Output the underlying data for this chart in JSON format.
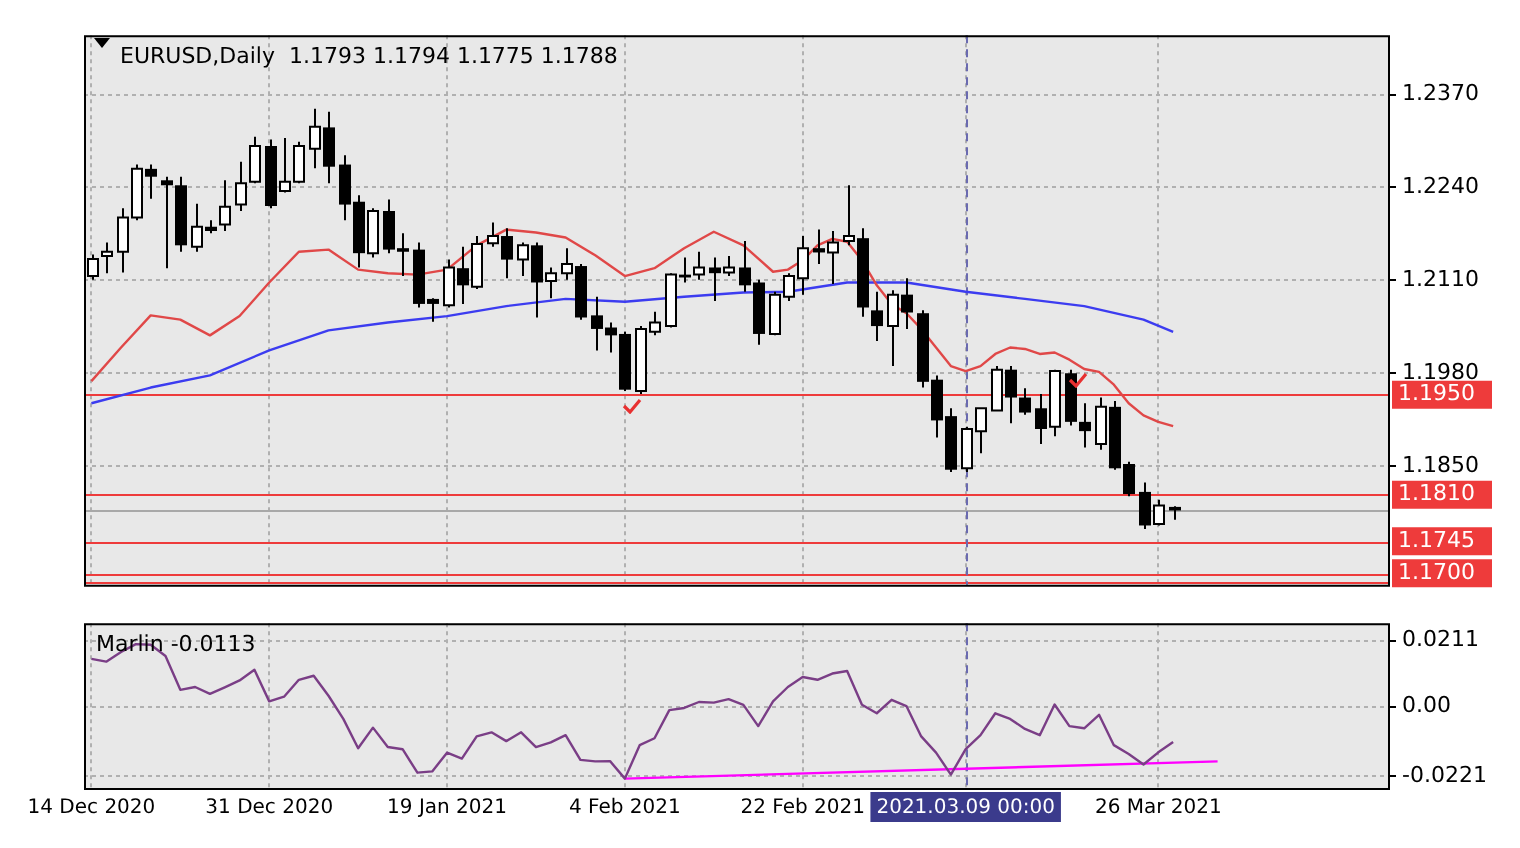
{
  "chart_data": [
    {
      "type": "candlestick",
      "title": "EURUSD,Daily  1.1793 1.1794 1.1775 1.1788",
      "categories": [
        "14 Dec 2020",
        null,
        null,
        null,
        null,
        null,
        null,
        null,
        null,
        null,
        null,
        null,
        "31 Dec 2020",
        null,
        null,
        null,
        null,
        null,
        null,
        null,
        null,
        null,
        null,
        null,
        "19 Jan 2021",
        null,
        null,
        null,
        null,
        null,
        null,
        null,
        null,
        null,
        null,
        null,
        "4 Feb 2021",
        null,
        null,
        null,
        null,
        null,
        null,
        null,
        null,
        null,
        null,
        null,
        "22 Feb 2021",
        null,
        null,
        null,
        null,
        null,
        null,
        null,
        null,
        null,
        null,
        "2021.03.09 00:00",
        null,
        null,
        null,
        null,
        null,
        null,
        null,
        null,
        null,
        null,
        null,
        null,
        "26 Mar 2021",
        null,
        null,
        null,
        null,
        null,
        null,
        null,
        null,
        null,
        null,
        null,
        null,
        null,
        null,
        null
      ],
      "ohlc": [
        [
          1.2116,
          1.2146,
          1.2111,
          1.214
        ],
        [
          1.2144,
          1.2163,
          1.212,
          1.215
        ],
        [
          1.215,
          1.2211,
          1.2121,
          1.2198
        ],
        [
          1.2198,
          1.2272,
          1.2194,
          1.2266
        ],
        [
          1.2266,
          1.2272,
          1.2224,
          1.2255
        ],
        [
          1.225,
          1.2255,
          1.2127,
          1.2243
        ],
        [
          1.2243,
          1.2255,
          1.215,
          1.2159
        ],
        [
          1.2157,
          1.2217,
          1.215,
          1.2185
        ],
        [
          1.2185,
          1.2194,
          1.2176,
          1.2179
        ],
        [
          1.2188,
          1.225,
          1.2179,
          1.2213
        ],
        [
          1.2216,
          1.2276,
          1.2207,
          1.2246
        ],
        [
          1.2248,
          1.2311,
          1.2246,
          1.2298
        ],
        [
          1.2298,
          1.2307,
          1.2211,
          1.2214
        ],
        [
          1.2235,
          1.2309,
          1.2233,
          1.2248
        ],
        [
          1.2248,
          1.2304,
          1.2246,
          1.2298
        ],
        [
          1.2294,
          1.235,
          1.2267,
          1.2325
        ],
        [
          1.2324,
          1.2346,
          1.2246,
          1.2269
        ],
        [
          1.2272,
          1.2285,
          1.2194,
          1.2216
        ],
        [
          1.222,
          1.2229,
          1.2128,
          1.2148
        ],
        [
          1.2148,
          1.2211,
          1.2142,
          1.2207
        ],
        [
          1.2207,
          1.2223,
          1.2148,
          1.2153
        ],
        [
          1.2155,
          1.2176,
          1.2116,
          1.215
        ],
        [
          1.2153,
          1.2163,
          1.2072,
          1.2077
        ],
        [
          1.2084,
          1.2085,
          1.2052,
          1.2077
        ],
        [
          1.2075,
          1.2139,
          1.2072,
          1.2128
        ],
        [
          1.2127,
          1.2157,
          1.2077,
          1.2103
        ],
        [
          1.2101,
          1.2172,
          1.2098,
          1.2161
        ],
        [
          1.2162,
          1.2191,
          1.2157,
          1.2172
        ],
        [
          1.2172,
          1.2183,
          1.2113,
          1.2139
        ],
        [
          1.2139,
          1.2163,
          1.2116,
          1.2159
        ],
        [
          1.2159,
          1.2163,
          1.2058,
          1.2107
        ],
        [
          1.2109,
          1.2128,
          1.2085,
          1.212
        ],
        [
          1.212,
          1.2155,
          1.2111,
          1.2133
        ],
        [
          1.213,
          1.2133,
          1.2055,
          1.2058
        ],
        [
          1.2061,
          1.2087,
          1.2012,
          1.2042
        ],
        [
          1.2044,
          1.2051,
          1.2009,
          1.2033
        ],
        [
          1.2035,
          1.2038,
          1.1955,
          1.1957
        ],
        [
          1.1955,
          1.2046,
          1.1951,
          1.2042
        ],
        [
          1.2038,
          1.2066,
          1.2033,
          1.2051
        ],
        [
          1.2046,
          1.212,
          1.2044,
          1.2118
        ],
        [
          1.2118,
          1.2142,
          1.2107,
          1.2114
        ],
        [
          1.2118,
          1.215,
          1.2111,
          1.2128
        ],
        [
          1.2128,
          1.2142,
          1.2081,
          1.212
        ],
        [
          1.2121,
          1.2144,
          1.2116,
          1.2128
        ],
        [
          1.2128,
          1.2165,
          1.2094,
          1.2103
        ],
        [
          1.2107,
          1.2111,
          1.202,
          1.2035
        ],
        [
          1.2035,
          1.2094,
          1.2033,
          1.209
        ],
        [
          1.2087,
          1.212,
          1.2081,
          1.2116
        ],
        [
          1.2113,
          1.2172,
          1.209,
          1.2155
        ],
        [
          1.2155,
          1.2181,
          1.2133,
          1.2149
        ],
        [
          1.2149,
          1.2179,
          1.2105,
          1.2163
        ],
        [
          1.2165,
          1.2243,
          1.2159,
          1.2172
        ],
        [
          1.2169,
          1.2183,
          1.2059,
          1.2072
        ],
        [
          1.2068,
          1.2094,
          1.2025,
          1.2046
        ],
        [
          1.2046,
          1.2096,
          1.199,
          1.209
        ],
        [
          1.209,
          1.2113,
          1.2042,
          1.2065
        ],
        [
          1.2064,
          1.2068,
          1.196,
          1.1968
        ],
        [
          1.1971,
          1.1977,
          1.189,
          1.1914
        ],
        [
          1.192,
          1.1931,
          1.1842,
          1.1845
        ],
        [
          1.1847,
          1.1905,
          1.1842,
          1.1902
        ],
        [
          1.1899,
          1.1931,
          1.1868,
          1.1931
        ],
        [
          1.1928,
          1.199,
          1.1928,
          1.1985
        ],
        [
          1.1985,
          1.199,
          1.191,
          1.1946
        ],
        [
          1.1946,
          1.1959,
          1.1922,
          1.1925
        ],
        [
          1.1931,
          1.1951,
          1.1881,
          1.1902
        ],
        [
          1.1905,
          1.1985,
          1.1892,
          1.1983
        ],
        [
          1.198,
          1.1985,
          1.1907,
          1.1912
        ],
        [
          1.1912,
          1.1938,
          1.1876,
          1.1899
        ],
        [
          1.1881,
          1.1946,
          1.1873,
          1.1933
        ],
        [
          1.1933,
          1.1941,
          1.1845,
          1.1847
        ],
        [
          1.1853,
          1.1856,
          1.1808,
          1.1811
        ],
        [
          1.1814,
          1.1827,
          1.1762,
          1.1767
        ],
        [
          1.1769,
          1.1803,
          1.1767,
          1.1795
        ],
        [
          1.1793,
          1.1794,
          1.1775,
          1.1788
        ],
        null,
        null,
        null,
        null,
        null,
        null,
        null,
        null,
        null,
        null,
        null,
        null,
        null,
        null
      ],
      "series": [
        {
          "type": "line",
          "color": "#e04848",
          "values": [
            1.1969,
            null,
            1.2016,
            null,
            1.2061,
            null,
            1.2055,
            null,
            1.2033,
            null,
            1.206,
            null,
            1.2107,
            null,
            1.215,
            null,
            1.2153,
            null,
            1.2125,
            null,
            1.212,
            null,
            1.2118,
            null,
            1.2125,
            null,
            1.2159,
            null,
            1.2181,
            null,
            1.2177,
            null,
            1.217,
            null,
            1.2145,
            null,
            1.2116,
            null,
            1.2127,
            null,
            1.2155,
            null,
            1.2178,
            null,
            1.2159,
            null,
            1.2122,
            1.2125,
            1.2138,
            1.2159,
            1.2168,
            1.2164,
            1.2138,
            1.2103,
            1.2077,
            1.2064,
            1.2042,
            1.2016,
            1.199,
            1.1983,
            1.199,
            1.2007,
            1.2016,
            1.2014,
            1.2007,
            1.2009,
            1.1999,
            1.1986,
            1.1982,
            1.1964,
            1.1938,
            1.1921,
            1.1912,
            1.1906,
            null,
            null,
            null,
            null,
            null,
            null,
            null,
            null,
            null,
            null,
            null,
            null,
            null,
            null
          ]
        },
        {
          "type": "line",
          "color": "#3c3cf0",
          "values": [
            1.1938,
            null,
            null,
            null,
            1.196,
            null,
            null,
            null,
            1.1977,
            null,
            null,
            null,
            1.2012,
            null,
            null,
            null,
            1.204,
            null,
            null,
            null,
            1.2051,
            null,
            null,
            null,
            1.206,
            null,
            null,
            null,
            1.2074,
            null,
            null,
            null,
            1.2084,
            null,
            null,
            null,
            1.208,
            null,
            null,
            null,
            1.2087,
            null,
            null,
            null,
            1.2093,
            null,
            null,
            1.2094,
            null,
            null,
            null,
            1.2107,
            null,
            null,
            null,
            1.2107,
            null,
            null,
            null,
            1.2094,
            null,
            null,
            null,
            1.2084,
            null,
            null,
            null,
            1.2074,
            null,
            null,
            null,
            1.2055,
            null,
            1.2038,
            null,
            null,
            null,
            null,
            null,
            null,
            null,
            null,
            null,
            null,
            null,
            null,
            null,
            null
          ]
        }
      ],
      "ylim": [
        1.1684,
        1.2453
      ],
      "yticks": [
        {
          "value": 1.237,
          "label": "1.2370"
        },
        {
          "value": 1.224,
          "label": "1.2240"
        },
        {
          "value": 1.211,
          "label": "1.2110"
        },
        {
          "value": 1.198,
          "label": "1.1980"
        },
        {
          "value": 1.185,
          "label": "1.1850"
        }
      ],
      "ref_lines": [
        {
          "axis": "y",
          "value": 1.195,
          "label": "1.1950",
          "color": "#ee3b3b"
        },
        {
          "axis": "y",
          "value": 1.181,
          "label": "1.1810",
          "color": "#ee3b3b"
        },
        {
          "axis": "y",
          "value": 1.1788,
          "color": "#a8a8a8"
        },
        {
          "axis": "y",
          "value": 1.1745,
          "label": "1.1745",
          "color": "#ee3b3b"
        },
        {
          "axis": "y",
          "value": 1.17,
          "label": "1.1700",
          "color": "#ee3b3b"
        },
        {
          "axis": "y",
          "value": 1.1689,
          "color": "#ee3b3b"
        },
        {
          "axis": "x",
          "value": "2021.03.09 00:00",
          "color": "#6a6ab0",
          "line_style": "dashed"
        }
      ],
      "grid": true,
      "tick_labels": "y"
    },
    {
      "type": "line",
      "title": "Marlin -0.0113",
      "categories": [
        "14 Dec 2020",
        null,
        null,
        null,
        null,
        null,
        null,
        null,
        null,
        null,
        null,
        null,
        "31 Dec 2020",
        null,
        null,
        null,
        null,
        null,
        null,
        null,
        null,
        null,
        null,
        null,
        "19 Jan 2021",
        null,
        null,
        null,
        null,
        null,
        null,
        null,
        null,
        null,
        null,
        null,
        "4 Feb 2021",
        null,
        null,
        null,
        null,
        null,
        null,
        null,
        null,
        null,
        null,
        null,
        "22 Feb 2021",
        null,
        null,
        null,
        null,
        null,
        null,
        null,
        null,
        null,
        null,
        "2021.03.09 00:00",
        null,
        null,
        null,
        null,
        null,
        null,
        null,
        null,
        null,
        null,
        null,
        null,
        "26 Mar 2021",
        null,
        null,
        null,
        null,
        null,
        null,
        null,
        null,
        null,
        null,
        null,
        null,
        null,
        null,
        null
      ],
      "series": [
        {
          "color": "#7a3e86",
          "values": [
            0.0153,
            0.0144,
            0.0175,
            0.02,
            0.0198,
            0.0162,
            0.0054,
            0.0063,
            0.0041,
            0.0062,
            0.0084,
            0.0118,
            0.0017,
            0.0032,
            0.0086,
            0.0099,
            0.0035,
            -0.0039,
            -0.0133,
            -0.0067,
            -0.0129,
            -0.0136,
            -0.0211,
            -0.0207,
            -0.0147,
            -0.0166,
            -0.0095,
            -0.0082,
            -0.011,
            -0.0082,
            -0.0129,
            -0.0114,
            -0.0091,
            -0.017,
            -0.0175,
            -0.0174,
            -0.023,
            -0.0123,
            -0.0101,
            -0.0011,
            -0.0004,
            0.0015,
            0.0013,
            0.0024,
            0.0006,
            -0.0062,
            0.0017,
            0.0063,
            0.0095,
            0.0086,
            0.0106,
            0.0114,
            0.0006,
            -0.0021,
            0.0022,
            0.0002,
            -0.0095,
            -0.0147,
            -0.0217,
            -0.0136,
            -0.0091,
            -0.0021,
            -0.0039,
            -0.0071,
            -0.0091,
            0.0007,
            -0.0062,
            -0.0069,
            -0.0026,
            -0.0123,
            -0.0151,
            -0.0185,
            -0.0146,
            -0.0113,
            null,
            null,
            null,
            null,
            null,
            null,
            null,
            null,
            null,
            null,
            null,
            null,
            null,
            null
          ]
        },
        {
          "color": "#ff00ff",
          "values": [
            null,
            null,
            null,
            null,
            null,
            null,
            null,
            null,
            null,
            null,
            null,
            null,
            null,
            null,
            null,
            null,
            null,
            null,
            null,
            null,
            null,
            null,
            null,
            null,
            null,
            null,
            null,
            null,
            null,
            null,
            null,
            null,
            null,
            null,
            null,
            null,
            -0.023,
            null,
            null,
            null,
            null,
            null,
            null,
            null,
            null,
            null,
            null,
            null,
            null,
            null,
            null,
            null,
            null,
            null,
            null,
            null,
            null,
            null,
            null,
            null,
            null,
            null,
            null,
            null,
            null,
            null,
            null,
            null,
            null,
            null,
            null,
            null,
            null,
            null,
            null,
            null,
            -0.0175,
            null,
            null,
            null,
            null,
            null,
            null,
            null,
            null,
            null,
            null,
            null
          ]
        }
      ],
      "ylim": [
        -0.026,
        0.0267
      ],
      "yticks": [
        0.0211,
        {
          "value": 0,
          "label": "0.00"
        },
        -0.0221
      ],
      "ref_lines": [
        {
          "axis": "x",
          "value": "2021.03.09 00:00",
          "color": "#6a6ab0",
          "line_style": "dashed"
        }
      ],
      "grid": true
    }
  ]
}
